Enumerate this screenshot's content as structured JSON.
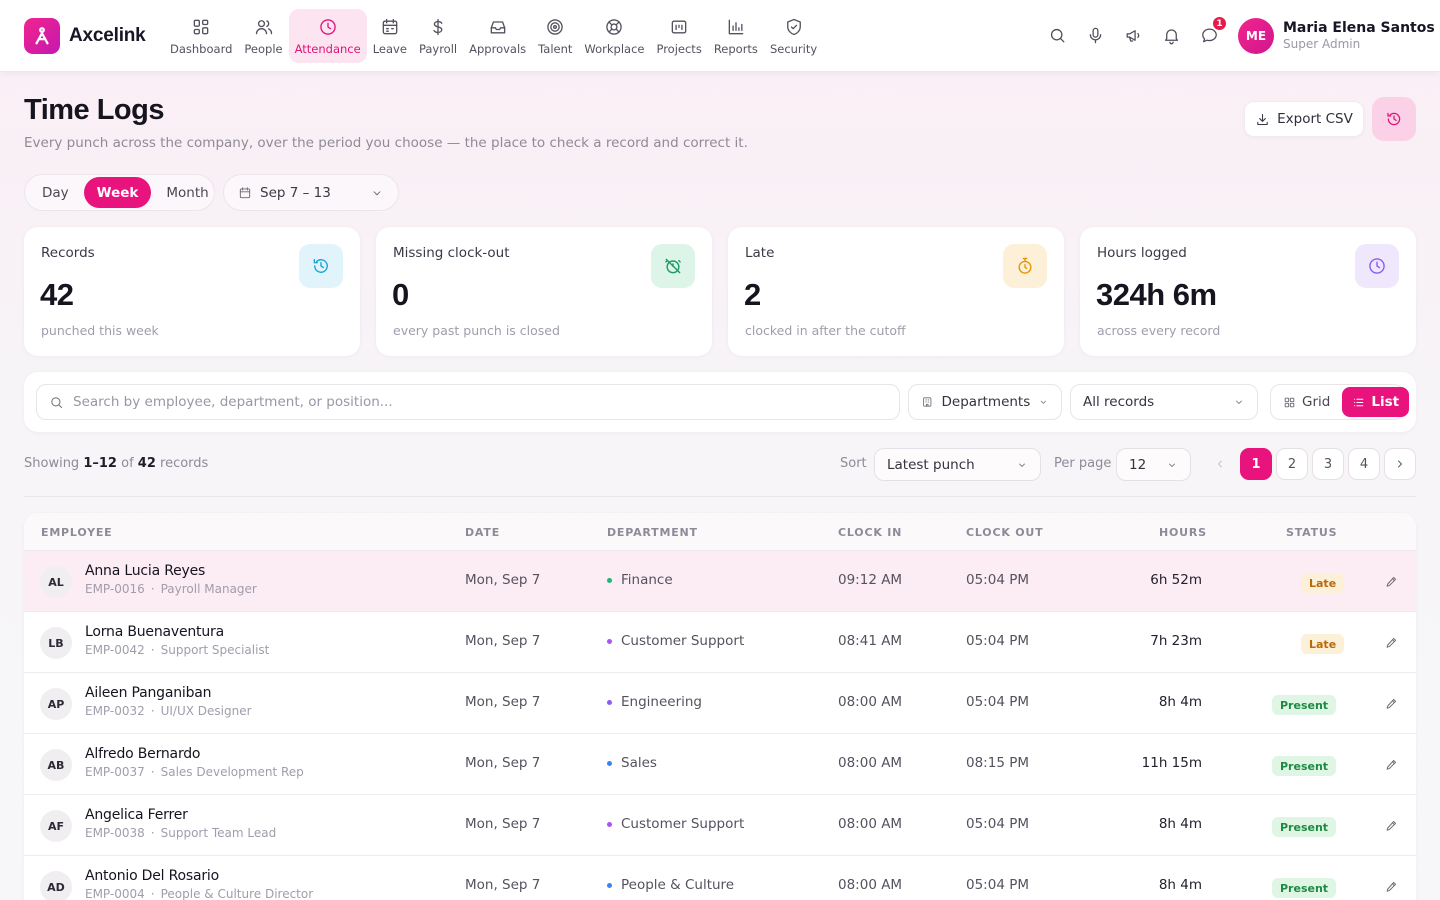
{
  "app": {
    "name": "Axcelink"
  },
  "nav": [
    {
      "label": "Dashboard",
      "icon": "dashboard-icon",
      "active": false
    },
    {
      "label": "People",
      "icon": "people-icon",
      "active": false
    },
    {
      "label": "Attendance",
      "icon": "clock-icon",
      "active": true
    },
    {
      "label": "Leave",
      "icon": "calendar-icon",
      "active": false
    },
    {
      "label": "Payroll",
      "icon": "dollar-icon",
      "active": false
    },
    {
      "label": "Approvals",
      "icon": "inbox-icon",
      "active": false
    },
    {
      "label": "Talent",
      "icon": "target-icon",
      "active": false
    },
    {
      "label": "Workplace",
      "icon": "lifebuoy-icon",
      "active": false
    },
    {
      "label": "Projects",
      "icon": "folder-icon",
      "active": false
    },
    {
      "label": "Reports",
      "icon": "bar-chart-icon",
      "active": false
    },
    {
      "label": "Security",
      "icon": "shield-icon",
      "active": false
    }
  ],
  "top_actions": {
    "icons": [
      "search-icon",
      "microphone-icon",
      "megaphone-icon",
      "bell-icon",
      "chat-icon"
    ],
    "chat_badge": "1"
  },
  "user": {
    "initials": "ME",
    "name": "Maria Elena Santos",
    "role": "Super Admin"
  },
  "page": {
    "title": "Time Logs",
    "subtitle": "Every punch across the company, over the period you choose — the place to check a record and correct it.",
    "export_label": "Export CSV"
  },
  "period": {
    "options": [
      "Day",
      "Week",
      "Month"
    ],
    "selected": "Week",
    "range": "Sep 7 – 13"
  },
  "stats": [
    {
      "label": "Records",
      "value": "42",
      "note": "punched this week",
      "icon": "history-icon",
      "color": "#1aa6d9",
      "bg": "#e2f4fb"
    },
    {
      "label": "Missing clock-out",
      "value": "0",
      "note": "every past punch is closed",
      "icon": "alarm-off-icon",
      "color": "#1f9c62",
      "bg": "#ddf4e9"
    },
    {
      "label": "Late",
      "value": "2",
      "note": "clocked in after the cutoff",
      "icon": "timer-icon",
      "color": "#e9970f",
      "bg": "#fdf0d9"
    },
    {
      "label": "Hours logged",
      "value": "324h 6m",
      "note": "across every record",
      "icon": "clock-icon",
      "color": "#8b5cf6",
      "bg": "#efe8fd"
    }
  ],
  "filters": {
    "search_placeholder": "Search by employee, department, or position...",
    "department_label": "Departments",
    "records_label": "All records",
    "view_grid": "Grid",
    "view_list": "List",
    "view_selected": "List"
  },
  "results": {
    "showing_prefix": "Showing",
    "showing_range": "1–12",
    "showing_of": "of",
    "showing_total": "42",
    "showing_suffix": "records",
    "sort_label": "Sort",
    "sort_value": "Latest punch",
    "perpage_label": "Per page",
    "perpage_value": "12",
    "pages": [
      "1",
      "2",
      "3",
      "4"
    ],
    "current_page": "1"
  },
  "table": {
    "columns": [
      "EMPLOYEE",
      "DATE",
      "DEPARTMENT",
      "CLOCK IN",
      "CLOCK OUT",
      "HOURS",
      "STATUS"
    ],
    "rows": [
      {
        "initials": "AL",
        "name": "Anna Lucia Reyes",
        "emp_id": "EMP-0016",
        "position": "Payroll Manager",
        "date": "Mon, Sep 7",
        "department": "Finance",
        "dept_color": "#22b573",
        "clock_in": "09:12 AM",
        "clock_out": "05:04 PM",
        "hours": "6h 52m",
        "status": "Late",
        "highlight": true
      },
      {
        "initials": "LB",
        "name": "Lorna Buenaventura",
        "emp_id": "EMP-0042",
        "position": "Support Specialist",
        "date": "Mon, Sep 7",
        "department": "Customer Support",
        "dept_color": "#a855f7",
        "clock_in": "08:41 AM",
        "clock_out": "05:04 PM",
        "hours": "7h 23m",
        "status": "Late",
        "highlight": false
      },
      {
        "initials": "AP",
        "name": "Aileen Panganiban",
        "emp_id": "EMP-0032",
        "position": "UI/UX Designer",
        "date": "Mon, Sep 7",
        "department": "Engineering",
        "dept_color": "#8b5cf6",
        "clock_in": "08:00 AM",
        "clock_out": "05:04 PM",
        "hours": "8h 4m",
        "status": "Present",
        "highlight": false
      },
      {
        "initials": "AB",
        "name": "Alfredo Bernardo",
        "emp_id": "EMP-0037",
        "position": "Sales Development Rep",
        "date": "Mon, Sep 7",
        "department": "Sales",
        "dept_color": "#3b82f6",
        "clock_in": "08:00 AM",
        "clock_out": "08:15 PM",
        "hours": "11h 15m",
        "status": "Present",
        "highlight": false
      },
      {
        "initials": "AF",
        "name": "Angelica Ferrer",
        "emp_id": "EMP-0038",
        "position": "Support Team Lead",
        "date": "Mon, Sep 7",
        "department": "Customer Support",
        "dept_color": "#a855f7",
        "clock_in": "08:00 AM",
        "clock_out": "05:04 PM",
        "hours": "8h 4m",
        "status": "Present",
        "highlight": false
      },
      {
        "initials": "AD",
        "name": "Antonio Del Rosario",
        "emp_id": "EMP-0004",
        "position": "People & Culture Director",
        "date": "Mon, Sep 7",
        "department": "People & Culture",
        "dept_color": "#3b82f6",
        "clock_in": "08:00 AM",
        "clock_out": "05:04 PM",
        "hours": "8h 4m",
        "status": "Present",
        "highlight": false
      }
    ]
  }
}
